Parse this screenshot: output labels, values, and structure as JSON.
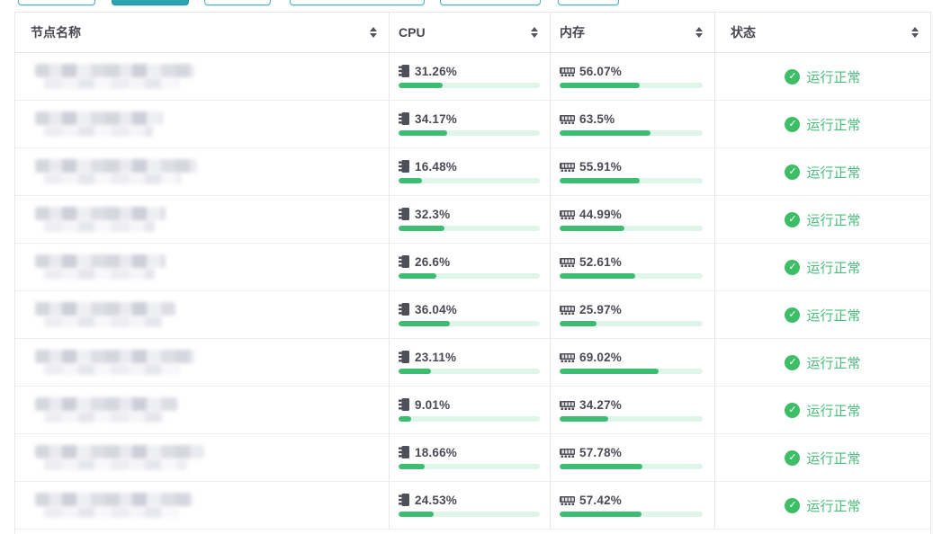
{
  "toolbar": {
    "active_button_index": 1,
    "button_count": 6
  },
  "colors": {
    "accent_teal": "#2da4af",
    "bar_green": "#3dbd71",
    "bar_track": "#e0f5e9",
    "status_green": "#4cbe7d",
    "check_circle_green": "#3ebd67",
    "header_text": "#474752",
    "value_text": "#4a4a55"
  },
  "table": {
    "columns": [
      {
        "label": "节点名称",
        "sortable": true
      },
      {
        "label": "CPU",
        "sortable": true
      },
      {
        "label": "内存",
        "sortable": true
      },
      {
        "label": "状态",
        "sortable": true
      }
    ],
    "rows": [
      {
        "cpu": "31.26%",
        "cpu_value": 31.26,
        "mem": "56.07%",
        "mem_value": 56.07,
        "status": "运行正常"
      },
      {
        "cpu": "34.17%",
        "cpu_value": 34.17,
        "mem": "63.5%",
        "mem_value": 63.5,
        "status": "运行正常"
      },
      {
        "cpu": "16.48%",
        "cpu_value": 16.48,
        "mem": "55.91%",
        "mem_value": 55.91,
        "status": "运行正常"
      },
      {
        "cpu": "32.3%",
        "cpu_value": 32.3,
        "mem": "44.99%",
        "mem_value": 44.99,
        "status": "运行正常"
      },
      {
        "cpu": "26.6%",
        "cpu_value": 26.6,
        "mem": "52.61%",
        "mem_value": 52.61,
        "status": "运行正常"
      },
      {
        "cpu": "36.04%",
        "cpu_value": 36.04,
        "mem": "25.97%",
        "mem_value": 25.97,
        "status": "运行正常"
      },
      {
        "cpu": "23.11%",
        "cpu_value": 23.11,
        "mem": "69.02%",
        "mem_value": 69.02,
        "status": "运行正常"
      },
      {
        "cpu": "9.01%",
        "cpu_value": 9.01,
        "mem": "34.27%",
        "mem_value": 34.27,
        "status": "运行正常"
      },
      {
        "cpu": "18.66%",
        "cpu_value": 18.66,
        "mem": "57.78%",
        "mem_value": 57.78,
        "status": "运行正常"
      },
      {
        "cpu": "24.53%",
        "cpu_value": 24.53,
        "mem": "57.42%",
        "mem_value": 57.42,
        "status": "运行正常"
      }
    ]
  }
}
